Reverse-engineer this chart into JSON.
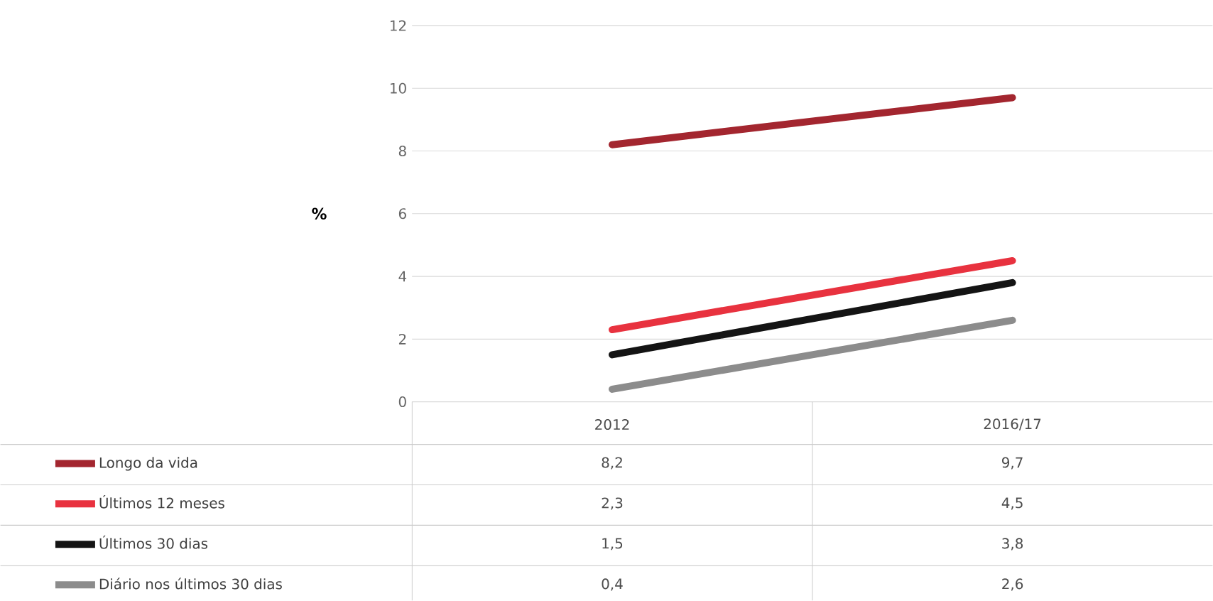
{
  "chart_data": {
    "type": "line",
    "ylabel": "%",
    "categories": [
      "2012",
      "2016/17"
    ],
    "series": [
      {
        "name": "Longo da vida",
        "color": "#a3262f",
        "values": [
          8.2,
          9.7
        ],
        "value_labels": [
          "8,2",
          "9,7"
        ]
      },
      {
        "name": "Últimos 12 meses",
        "color": "#e8323f",
        "values": [
          2.3,
          4.5
        ],
        "value_labels": [
          "2,3",
          "4,5"
        ]
      },
      {
        "name": "Últimos 30 dias",
        "color": "#141414",
        "values": [
          1.5,
          3.8
        ],
        "value_labels": [
          "1,5",
          "3,8"
        ]
      },
      {
        "name": "Diário nos últimos 30 dias",
        "color": "#8c8c8c",
        "values": [
          0.4,
          2.6
        ],
        "value_labels": [
          "0,4",
          "2,6"
        ]
      }
    ],
    "ylim": [
      0,
      12
    ],
    "yticks": [
      0,
      2,
      4,
      6,
      8,
      10,
      12
    ],
    "grid": "y",
    "legend": "bottom"
  }
}
